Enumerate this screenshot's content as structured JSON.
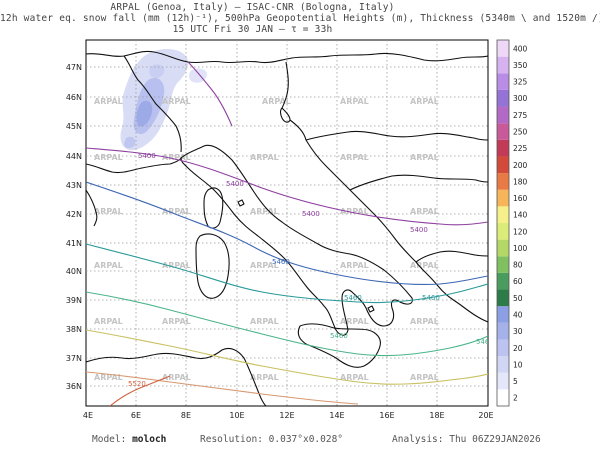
{
  "header": {
    "line1": "ARPAL (Genoa, Italy)  —  ISAC-CNR (Bologna, Italy)",
    "line2": "12h water eq. snow fall (mm (12h)⁻¹), 500hPa Geopotential Heights (m), Thickness (5340m \\ and 1520m /)",
    "line3": "15 UTC Fri 30 JAN  —  τ = 33h"
  },
  "axes": {
    "lat_labels": [
      "47N",
      "46N",
      "45N",
      "44N",
      "43N",
      "42N",
      "41N",
      "40N",
      "39N",
      "38N",
      "37N",
      "36N"
    ],
    "lon_labels": [
      "4E",
      "6E",
      "8E",
      "10E",
      "12E",
      "14E",
      "16E",
      "18E",
      "20E"
    ]
  },
  "legend": {
    "levels": [
      "2",
      "5",
      "10",
      "20",
      "30",
      "40",
      "50",
      "60",
      "80",
      "100",
      "120",
      "140",
      "160",
      "180",
      "200",
      "225",
      "250",
      "275",
      "300",
      "325",
      "350",
      "400"
    ],
    "colors": [
      "#ffffff",
      "#e4e6fa",
      "#d2d6f5",
      "#bcc3f0",
      "#a5b2ea",
      "#8c9fe4",
      "#2e7b4a",
      "#4a9c5e",
      "#80c060",
      "#b4d868",
      "#dcec78",
      "#f6f08a",
      "#f7b55a",
      "#e87a45",
      "#d44a3a",
      "#c23a55",
      "#c85a9a",
      "#b26ac6",
      "#9572d6",
      "#b98ce6",
      "#d7b2f0",
      "#eed7f7"
    ]
  },
  "watermark": "ARPAL",
  "contours": {
    "contour_labels": [
      "5400",
      "5400",
      "5460",
      "5460",
      "5460",
      "5400",
      "5520",
      "5400",
      "5460",
      "5460"
    ]
  },
  "footer": {
    "model_label": "Model:",
    "model": "moloch",
    "resolution_label": "Resolution:",
    "resolution": "0.037°x0.028°",
    "analysis_label": "Analysis:",
    "analysis": "Thu 06Z29JAN2026"
  }
}
